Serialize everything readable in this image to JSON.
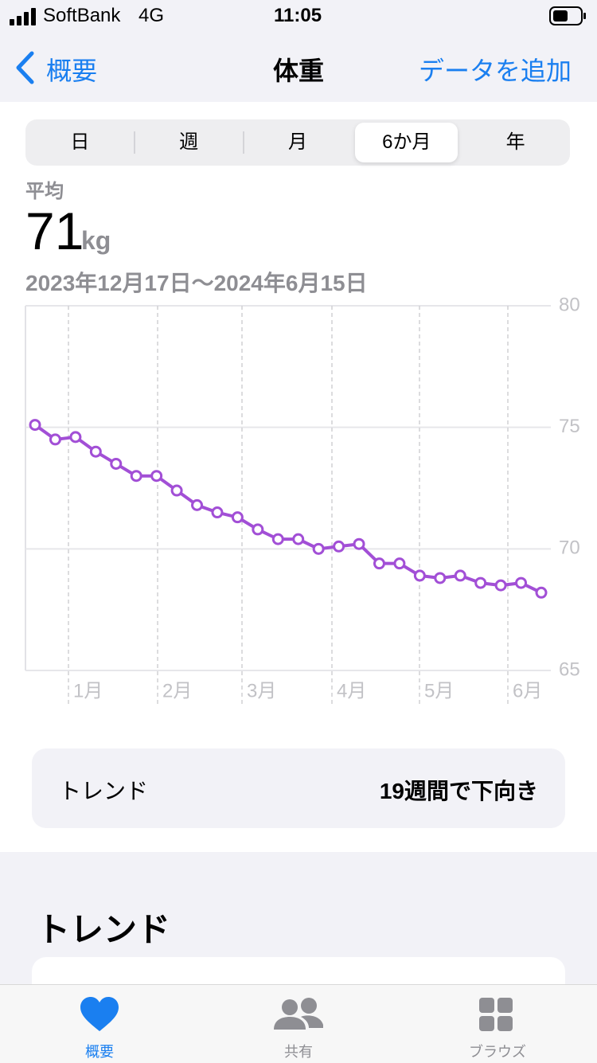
{
  "status_bar": {
    "carrier": "SoftBank",
    "network": "4G",
    "time": "11:05"
  },
  "nav": {
    "back": "概要",
    "title": "体重",
    "action": "データを追加"
  },
  "segments": {
    "items": [
      "日",
      "週",
      "月",
      "6か月",
      "年"
    ],
    "selected": 3
  },
  "summary": {
    "label": "平均",
    "value": "71",
    "unit": "kg",
    "range": "2023年12月17日〜2024年6月15日"
  },
  "chart_data": {
    "type": "line",
    "x_labels": [
      "1月",
      "2月",
      "3月",
      "4月",
      "5月",
      "6月"
    ],
    "values": [
      75.1,
      74.5,
      74.6,
      74.0,
      73.5,
      73.0,
      73.0,
      72.4,
      71.8,
      71.5,
      71.3,
      70.8,
      70.4,
      70.4,
      70.0,
      70.1,
      70.2,
      69.4,
      69.4,
      68.9,
      68.8,
      68.9,
      68.6,
      68.5,
      68.6,
      68.2
    ],
    "color": "#a24fd6",
    "ylim": [
      65,
      80
    ],
    "yticks": [
      65,
      70,
      75,
      80
    ],
    "grid": true
  },
  "trend_card": {
    "label": "トレンド",
    "value": "19週間で下向き"
  },
  "section": {
    "title": "トレンド"
  },
  "tab_bar": {
    "items": [
      "概要",
      "共有",
      "ブラウズ"
    ],
    "selected": 0
  }
}
